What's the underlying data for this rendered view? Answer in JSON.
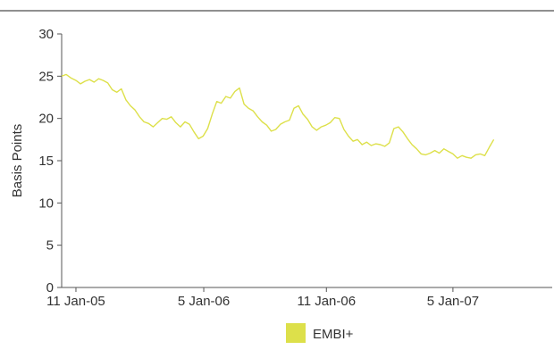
{
  "chart_data": {
    "type": "line",
    "title": "",
    "xlabel": "",
    "ylabel": "Basis Points",
    "ylim": [
      0,
      30
    ],
    "yticks": [
      0,
      5,
      10,
      15,
      20,
      25,
      30
    ],
    "x_tick_labels": [
      "11 Jan-05",
      "5 Jan-06",
      "11 Jan-06",
      "5 Jan-07"
    ],
    "x_domain": [
      "2004-12-20",
      "2007-01-15"
    ],
    "x_ticks": [
      "2005-01-11",
      "2005-07-27",
      "2006-02-01",
      "2006-08-15"
    ],
    "legend": {
      "position": "bottom-center",
      "show": true
    },
    "grid": false,
    "series": [
      {
        "name": "EMBI+",
        "color": "#dde04a",
        "points": [
          [
            "2004-12-20",
            25.0
          ],
          [
            "2004-12-27",
            25.2
          ],
          [
            "2005-01-03",
            24.8
          ],
          [
            "2005-01-11",
            24.5
          ],
          [
            "2005-01-18",
            24.1
          ],
          [
            "2005-01-25",
            24.4
          ],
          [
            "2005-02-01",
            24.6
          ],
          [
            "2005-02-08",
            24.3
          ],
          [
            "2005-02-15",
            24.7
          ],
          [
            "2005-02-22",
            24.5
          ],
          [
            "2005-03-01",
            24.2
          ],
          [
            "2005-03-08",
            23.4
          ],
          [
            "2005-03-15",
            23.1
          ],
          [
            "2005-03-22",
            23.5
          ],
          [
            "2005-03-29",
            22.2
          ],
          [
            "2005-04-05",
            21.5
          ],
          [
            "2005-04-12",
            21.0
          ],
          [
            "2005-04-19",
            20.2
          ],
          [
            "2005-04-26",
            19.6
          ],
          [
            "2005-05-03",
            19.4
          ],
          [
            "2005-05-10",
            19.0
          ],
          [
            "2005-05-17",
            19.5
          ],
          [
            "2005-05-24",
            20.0
          ],
          [
            "2005-05-31",
            19.9
          ],
          [
            "2005-06-07",
            20.2
          ],
          [
            "2005-06-14",
            19.5
          ],
          [
            "2005-06-21",
            19.0
          ],
          [
            "2005-06-28",
            19.6
          ],
          [
            "2005-07-05",
            19.3
          ],
          [
            "2005-07-12",
            18.4
          ],
          [
            "2005-07-19",
            17.6
          ],
          [
            "2005-07-26",
            17.9
          ],
          [
            "2005-08-02",
            18.8
          ],
          [
            "2005-08-09",
            20.5
          ],
          [
            "2005-08-16",
            22.0
          ],
          [
            "2005-08-23",
            21.8
          ],
          [
            "2005-08-30",
            22.6
          ],
          [
            "2005-09-06",
            22.4
          ],
          [
            "2005-09-13",
            23.2
          ],
          [
            "2005-09-20",
            23.6
          ],
          [
            "2005-09-27",
            21.7
          ],
          [
            "2005-10-04",
            21.2
          ],
          [
            "2005-10-11",
            20.9
          ],
          [
            "2005-10-18",
            20.2
          ],
          [
            "2005-10-25",
            19.6
          ],
          [
            "2005-11-01",
            19.2
          ],
          [
            "2005-11-08",
            18.5
          ],
          [
            "2005-11-15",
            18.7
          ],
          [
            "2005-11-22",
            19.3
          ],
          [
            "2005-11-29",
            19.6
          ],
          [
            "2005-12-06",
            19.8
          ],
          [
            "2005-12-13",
            21.2
          ],
          [
            "2005-12-20",
            21.5
          ],
          [
            "2005-12-27",
            20.5
          ],
          [
            "2006-01-03",
            19.9
          ],
          [
            "2006-01-10",
            19.0
          ],
          [
            "2006-01-17",
            18.6
          ],
          [
            "2006-01-24",
            19.0
          ],
          [
            "2006-01-31",
            19.2
          ],
          [
            "2006-02-07",
            19.5
          ],
          [
            "2006-02-14",
            20.1
          ],
          [
            "2006-02-21",
            20.0
          ],
          [
            "2006-02-28",
            18.7
          ],
          [
            "2006-03-07",
            17.9
          ],
          [
            "2006-03-14",
            17.3
          ],
          [
            "2006-03-21",
            17.5
          ],
          [
            "2006-03-28",
            16.9
          ],
          [
            "2006-04-04",
            17.2
          ],
          [
            "2006-04-11",
            16.8
          ],
          [
            "2006-04-18",
            17.0
          ],
          [
            "2006-04-25",
            16.9
          ],
          [
            "2006-05-02",
            16.7
          ],
          [
            "2006-05-09",
            17.1
          ],
          [
            "2006-05-16",
            18.8
          ],
          [
            "2006-05-23",
            19.0
          ],
          [
            "2006-05-30",
            18.4
          ],
          [
            "2006-06-06",
            17.6
          ],
          [
            "2006-06-13",
            16.9
          ],
          [
            "2006-06-20",
            16.4
          ],
          [
            "2006-06-27",
            15.8
          ],
          [
            "2006-07-04",
            15.7
          ],
          [
            "2006-07-11",
            15.9
          ],
          [
            "2006-07-18",
            16.2
          ],
          [
            "2006-07-25",
            15.9
          ],
          [
            "2006-08-01",
            16.4
          ],
          [
            "2006-08-08",
            16.1
          ],
          [
            "2006-08-15",
            15.8
          ],
          [
            "2006-08-22",
            15.3
          ],
          [
            "2006-08-29",
            15.6
          ],
          [
            "2006-09-05",
            15.4
          ],
          [
            "2006-09-12",
            15.3
          ],
          [
            "2006-09-19",
            15.7
          ],
          [
            "2006-09-26",
            15.8
          ],
          [
            "2006-10-03",
            15.6
          ],
          [
            "2006-10-10",
            16.6
          ],
          [
            "2006-10-17",
            17.5
          ]
        ]
      }
    ]
  }
}
